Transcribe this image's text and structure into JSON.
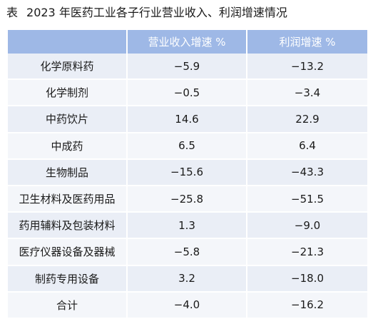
{
  "caption": {
    "label": "表",
    "title": "2023 年医药工业各子行业营业收入、利润增速情况"
  },
  "table": {
    "headers": [
      "",
      "营业收入增速 %",
      "利润增速 %"
    ],
    "rows": [
      {
        "name": "化学原料药",
        "revenue": "−5.9",
        "profit": "−13.2"
      },
      {
        "name": "化学制剂",
        "revenue": "−0.5",
        "profit": "−3.4"
      },
      {
        "name": "中药饮片",
        "revenue": "14.6",
        "profit": "22.9"
      },
      {
        "name": "中成药",
        "revenue": "6.5",
        "profit": "6.4"
      },
      {
        "name": "生物制品",
        "revenue": "−15.6",
        "profit": "−43.3"
      },
      {
        "name": "卫生材料及医药用品",
        "revenue": "−25.8",
        "profit": "−51.5"
      },
      {
        "name": "药用辅料及包装材料",
        "revenue": "1.3",
        "profit": "−9.0"
      },
      {
        "name": "医疗仪器设备及器械",
        "revenue": "−5.8",
        "profit": "−21.3"
      },
      {
        "name": "制药专用设备",
        "revenue": "3.2",
        "profit": "−18.0"
      },
      {
        "name": "合计",
        "revenue": "−4.0",
        "profit": "−16.2"
      }
    ]
  },
  "colors": {
    "header_bg": "#9eb8e6",
    "row_bg_odd": "#eaeef6",
    "row_bg_even": "#f4f6fa"
  }
}
